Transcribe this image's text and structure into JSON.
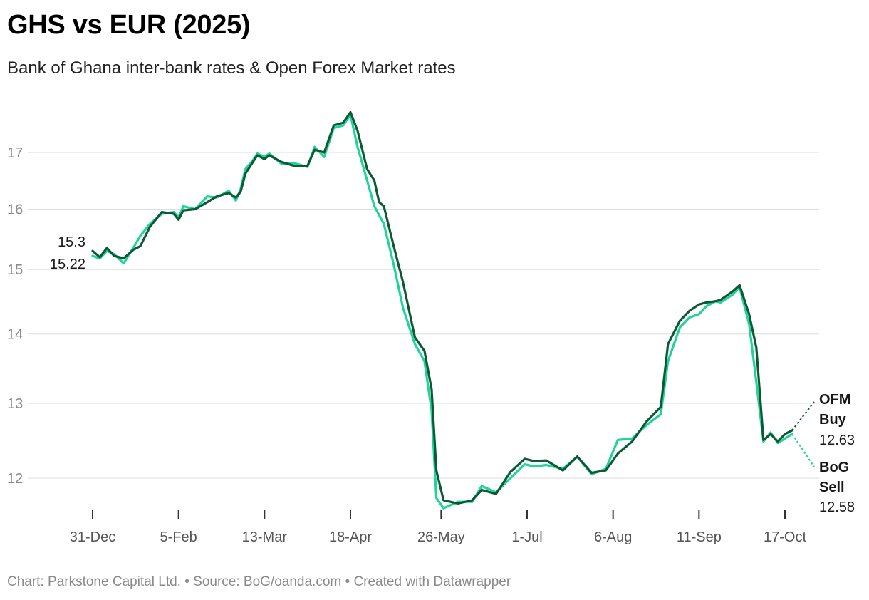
{
  "title": "GHS vs EUR (2025)",
  "subtitle": "Bank of Ghana inter-bank rates & Open Forex Market rates",
  "footer": "Chart: Parkstone Capital Ltd. • Source: BoG/oanda.com • Created with Datawrapper",
  "colors": {
    "ofm": "#0b5a33",
    "bog": "#1fd39a",
    "grid": "#dedede",
    "axis": "#333333"
  },
  "chart_data": {
    "type": "line",
    "title": "GHS vs EUR (2025)",
    "subtitle": "Bank of Ghana inter-bank rates & Open Forex Market rates",
    "y_scale": "log",
    "ylim": [
      11.65,
      17.8
    ],
    "y_ticks": [
      12,
      13,
      14,
      15,
      16,
      17
    ],
    "x_ticks": [
      {
        "date": "2024-12-31",
        "label": "31-Dec"
      },
      {
        "date": "2025-02-05",
        "label": "5-Feb"
      },
      {
        "date": "2025-03-13",
        "label": "13-Mar"
      },
      {
        "date": "2025-04-18",
        "label": "18-Apr"
      },
      {
        "date": "2025-05-26",
        "label": "26-May"
      },
      {
        "date": "2025-07-01",
        "label": "1-Jul"
      },
      {
        "date": "2025-08-06",
        "label": "6-Aug"
      },
      {
        "date": "2025-09-11",
        "label": "11-Sep"
      },
      {
        "date": "2025-10-17",
        "label": "17-Oct"
      }
    ],
    "xlim": [
      "2024-12-31",
      "2025-10-28"
    ],
    "grid": true,
    "legend": "end labels",
    "start_labels": [
      "15.3",
      "15.22"
    ],
    "series": [
      {
        "name": "OFM Buy",
        "end_label_lines": [
          "OFM",
          "Buy"
        ],
        "end_value": "12.63",
        "color": "#0b5a33",
        "points": [
          [
            "2024-12-31",
            15.3
          ],
          [
            "2025-01-03",
            15.2
          ],
          [
            "2025-01-06",
            15.35
          ],
          [
            "2025-01-09",
            15.22
          ],
          [
            "2025-01-13",
            15.18
          ],
          [
            "2025-01-17",
            15.32
          ],
          [
            "2025-01-20",
            15.38
          ],
          [
            "2025-01-24",
            15.7
          ],
          [
            "2025-01-29",
            15.95
          ],
          [
            "2025-02-03",
            15.92
          ],
          [
            "2025-02-05",
            15.82
          ],
          [
            "2025-02-07",
            15.98
          ],
          [
            "2025-02-12",
            16.0
          ],
          [
            "2025-02-17",
            16.12
          ],
          [
            "2025-02-21",
            16.22
          ],
          [
            "2025-02-26",
            16.28
          ],
          [
            "2025-03-01",
            16.2
          ],
          [
            "2025-03-03",
            16.3
          ],
          [
            "2025-03-05",
            16.62
          ],
          [
            "2025-03-08",
            16.82
          ],
          [
            "2025-03-10",
            16.95
          ],
          [
            "2025-03-13",
            16.88
          ],
          [
            "2025-03-15",
            16.95
          ],
          [
            "2025-03-20",
            16.83
          ],
          [
            "2025-03-26",
            16.75
          ],
          [
            "2025-03-31",
            16.76
          ],
          [
            "2025-04-03",
            17.05
          ],
          [
            "2025-04-07",
            17.0
          ],
          [
            "2025-04-11",
            17.5
          ],
          [
            "2025-04-15",
            17.55
          ],
          [
            "2025-04-18",
            17.75
          ],
          [
            "2025-04-21",
            17.4
          ],
          [
            "2025-04-25",
            16.7
          ],
          [
            "2025-04-28",
            16.5
          ],
          [
            "2025-04-30",
            16.12
          ],
          [
            "2025-05-02",
            16.05
          ],
          [
            "2025-05-06",
            15.4
          ],
          [
            "2025-05-10",
            14.8
          ],
          [
            "2025-05-15",
            13.95
          ],
          [
            "2025-05-19",
            13.75
          ],
          [
            "2025-05-22",
            13.2
          ],
          [
            "2025-05-24",
            12.1
          ],
          [
            "2025-05-27",
            11.72
          ],
          [
            "2025-06-02",
            11.68
          ],
          [
            "2025-06-08",
            11.72
          ],
          [
            "2025-06-12",
            11.85
          ],
          [
            "2025-06-18",
            11.8
          ],
          [
            "2025-06-24",
            12.08
          ],
          [
            "2025-06-30",
            12.25
          ],
          [
            "2025-07-04",
            12.22
          ],
          [
            "2025-07-09",
            12.23
          ],
          [
            "2025-07-16",
            12.1
          ],
          [
            "2025-07-22",
            12.28
          ],
          [
            "2025-07-28",
            12.07
          ],
          [
            "2025-08-03",
            12.1
          ],
          [
            "2025-08-08",
            12.32
          ],
          [
            "2025-08-14",
            12.48
          ],
          [
            "2025-08-20",
            12.75
          ],
          [
            "2025-08-26",
            12.95
          ],
          [
            "2025-08-29",
            13.85
          ],
          [
            "2025-09-03",
            14.2
          ],
          [
            "2025-09-07",
            14.35
          ],
          [
            "2025-09-11",
            14.45
          ],
          [
            "2025-09-14",
            14.48
          ],
          [
            "2025-09-18",
            14.5
          ],
          [
            "2025-09-20",
            14.52
          ],
          [
            "2025-09-25",
            14.65
          ],
          [
            "2025-09-28",
            14.75
          ],
          [
            "2025-10-02",
            14.3
          ],
          [
            "2025-10-05",
            13.8
          ],
          [
            "2025-10-08",
            12.5
          ],
          [
            "2025-10-11",
            12.58
          ],
          [
            "2025-10-14",
            12.48
          ],
          [
            "2025-10-17",
            12.58
          ],
          [
            "2025-10-20",
            12.63
          ]
        ]
      },
      {
        "name": "BoG Sell",
        "end_label_lines": [
          "BoG",
          "Sell"
        ],
        "end_value": "12.58",
        "color": "#1fd39a",
        "points": [
          [
            "2024-12-31",
            15.22
          ],
          [
            "2025-01-03",
            15.18
          ],
          [
            "2025-01-06",
            15.3
          ],
          [
            "2025-01-09",
            15.25
          ],
          [
            "2025-01-13",
            15.1
          ],
          [
            "2025-01-17",
            15.35
          ],
          [
            "2025-01-20",
            15.55
          ],
          [
            "2025-01-24",
            15.75
          ],
          [
            "2025-01-29",
            15.92
          ],
          [
            "2025-02-03",
            15.95
          ],
          [
            "2025-02-05",
            15.86
          ],
          [
            "2025-02-07",
            16.05
          ],
          [
            "2025-02-12",
            16.0
          ],
          [
            "2025-02-17",
            16.22
          ],
          [
            "2025-02-21",
            16.2
          ],
          [
            "2025-02-26",
            16.32
          ],
          [
            "2025-03-01",
            16.15
          ],
          [
            "2025-03-03",
            16.35
          ],
          [
            "2025-03-05",
            16.7
          ],
          [
            "2025-03-08",
            16.85
          ],
          [
            "2025-03-10",
            16.98
          ],
          [
            "2025-03-13",
            16.92
          ],
          [
            "2025-03-15",
            16.98
          ],
          [
            "2025-03-20",
            16.8
          ],
          [
            "2025-03-26",
            16.8
          ],
          [
            "2025-03-31",
            16.74
          ],
          [
            "2025-04-03",
            17.1
          ],
          [
            "2025-04-07",
            16.92
          ],
          [
            "2025-04-11",
            17.45
          ],
          [
            "2025-04-15",
            17.5
          ],
          [
            "2025-04-18",
            17.7
          ],
          [
            "2025-04-21",
            17.1
          ],
          [
            "2025-04-25",
            16.5
          ],
          [
            "2025-04-28",
            16.05
          ],
          [
            "2025-05-02",
            15.75
          ],
          [
            "2025-05-06",
            15.1
          ],
          [
            "2025-05-10",
            14.4
          ],
          [
            "2025-05-15",
            13.85
          ],
          [
            "2025-05-19",
            13.6
          ],
          [
            "2025-05-22",
            12.9
          ],
          [
            "2025-05-24",
            11.75
          ],
          [
            "2025-05-27",
            11.62
          ],
          [
            "2025-06-02",
            11.7
          ],
          [
            "2025-06-08",
            11.7
          ],
          [
            "2025-06-12",
            11.9
          ],
          [
            "2025-06-18",
            11.82
          ],
          [
            "2025-06-24",
            12.0
          ],
          [
            "2025-06-30",
            12.18
          ],
          [
            "2025-07-04",
            12.15
          ],
          [
            "2025-07-09",
            12.17
          ],
          [
            "2025-07-16",
            12.12
          ],
          [
            "2025-07-22",
            12.28
          ],
          [
            "2025-07-28",
            12.05
          ],
          [
            "2025-08-03",
            12.12
          ],
          [
            "2025-08-08",
            12.5
          ],
          [
            "2025-08-14",
            12.52
          ],
          [
            "2025-08-20",
            12.7
          ],
          [
            "2025-08-26",
            12.85
          ],
          [
            "2025-08-29",
            13.6
          ],
          [
            "2025-09-03",
            14.1
          ],
          [
            "2025-09-07",
            14.25
          ],
          [
            "2025-09-11",
            14.3
          ],
          [
            "2025-09-14",
            14.42
          ],
          [
            "2025-09-18",
            14.5
          ],
          [
            "2025-09-20",
            14.48
          ],
          [
            "2025-09-25",
            14.6
          ],
          [
            "2025-09-28",
            14.72
          ],
          [
            "2025-10-02",
            14.15
          ],
          [
            "2025-10-05",
            13.3
          ],
          [
            "2025-10-08",
            12.48
          ],
          [
            "2025-10-11",
            12.6
          ],
          [
            "2025-10-14",
            12.46
          ],
          [
            "2025-10-17",
            12.52
          ],
          [
            "2025-10-20",
            12.58
          ]
        ]
      }
    ]
  }
}
